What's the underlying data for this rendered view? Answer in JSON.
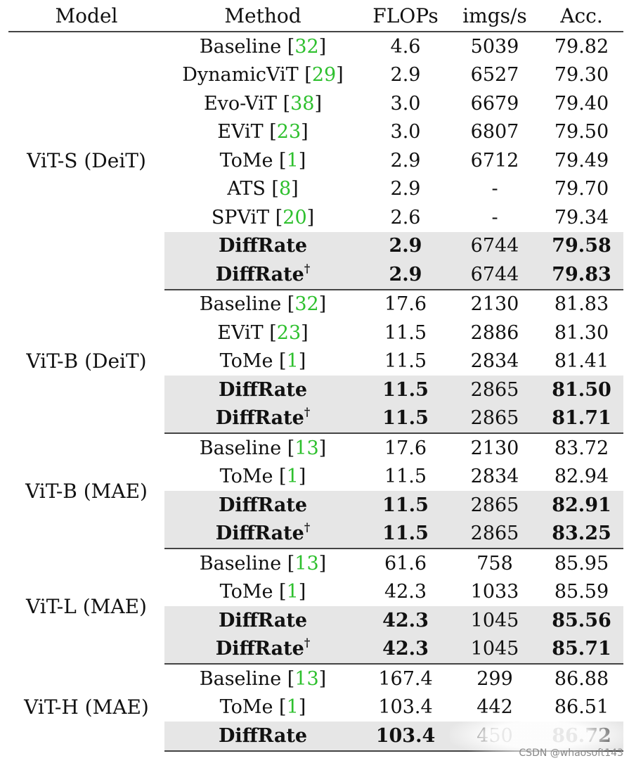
{
  "headers": [
    "Model",
    "Method",
    "FLOPs",
    "imgs/s",
    "Acc."
  ],
  "groups": [
    {
      "model": "ViT-S (DeiT)",
      "rows": [
        {
          "method": "Baseline",
          "ref": "32",
          "flops": "4.6",
          "imgs": "5039",
          "acc": "79.82"
        },
        {
          "method": "DynamicViT",
          "ref": "29",
          "flops": "2.9",
          "imgs": "6527",
          "acc": "79.30"
        },
        {
          "method": "Evo-ViT",
          "ref": "38",
          "flops": "3.0",
          "imgs": "6679",
          "acc": "79.40"
        },
        {
          "method": "EViT",
          "ref": "23",
          "flops": "3.0",
          "imgs": "6807",
          "acc": "79.50"
        },
        {
          "method": "ToMe",
          "ref": "1",
          "flops": "2.9",
          "imgs": "6712",
          "acc": "79.49"
        },
        {
          "method": "ATS",
          "ref": "8",
          "flops": "2.9",
          "imgs": "-",
          "acc": "79.70"
        },
        {
          "method": "SPViT",
          "ref": "20",
          "flops": "2.6",
          "imgs": "-",
          "acc": "79.34"
        },
        {
          "method": "DiffRate",
          "flops": "2.9",
          "imgs": "6744",
          "acc": "79.58"
        },
        {
          "method": "DiffRate",
          "dagger": "†",
          "flops": "2.9",
          "imgs": "6744",
          "acc": "79.83"
        }
      ]
    },
    {
      "model": "ViT-B (DeiT)",
      "rows": [
        {
          "method": "Baseline",
          "ref": "32",
          "flops": "17.6",
          "imgs": "2130",
          "acc": "81.83"
        },
        {
          "method": "EViT",
          "ref": "23",
          "flops": "11.5",
          "imgs": "2886",
          "acc": "81.30"
        },
        {
          "method": "ToMe",
          "ref": "1",
          "flops": "11.5",
          "imgs": "2834",
          "acc": "81.41"
        },
        {
          "method": "DiffRate",
          "flops": "11.5",
          "imgs": "2865",
          "acc": "81.50"
        },
        {
          "method": "DiffRate",
          "dagger": "†",
          "flops": "11.5",
          "imgs": "2865",
          "acc": "81.71"
        }
      ]
    },
    {
      "model": "ViT-B (MAE)",
      "rows": [
        {
          "method": "Baseline",
          "ref": "13",
          "flops": "17.6",
          "imgs": "2130",
          "acc": "83.72"
        },
        {
          "method": "ToMe",
          "ref": "1",
          "flops": "11.5",
          "imgs": "2834",
          "acc": "82.94"
        },
        {
          "method": "DiffRate",
          "flops": "11.5",
          "imgs": "2865",
          "acc": "82.91"
        },
        {
          "method": "DiffRate",
          "dagger": "†",
          "flops": "11.5",
          "imgs": "2865",
          "acc": "83.25"
        }
      ]
    },
    {
      "model": "ViT-L (MAE)",
      "rows": [
        {
          "method": "Baseline",
          "ref": "13",
          "flops": "61.6",
          "imgs": "758",
          "acc": "85.95"
        },
        {
          "method": "ToMe",
          "ref": "1",
          "flops": "42.3",
          "imgs": "1033",
          "acc": "85.59"
        },
        {
          "method": "DiffRate",
          "flops": "42.3",
          "imgs": "1045",
          "acc": "85.56"
        },
        {
          "method": "DiffRate",
          "dagger": "†",
          "flops": "42.3",
          "imgs": "1045",
          "acc": "85.71"
        }
      ]
    },
    {
      "model": "ViT-H (MAE)",
      "rows": [
        {
          "method": "Baseline",
          "ref": "13",
          "flops": "167.4",
          "imgs": "299",
          "acc": "86.88"
        },
        {
          "method": "ToMe",
          "ref": "1",
          "flops": "103.4",
          "imgs": "442",
          "acc": "86.51"
        },
        {
          "method": "DiffRate",
          "flops": "103.4",
          "imgs": "450",
          "acc": "86.72"
        }
      ]
    }
  ],
  "watermark": "CSDN @whaosoft143",
  "colors": {
    "ref": "#2ec02e",
    "shade": "#e6e6e6",
    "rule": "#444444"
  }
}
